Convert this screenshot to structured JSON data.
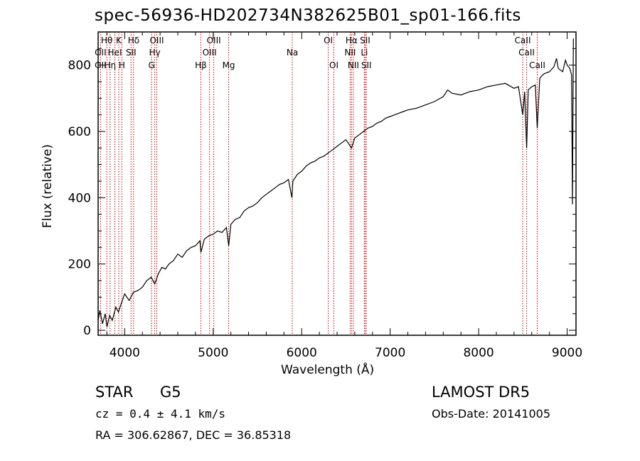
{
  "title": "spec-56936-HD202734N382625B01_sp01-166.fits",
  "info": {
    "object_class": "STAR",
    "subclass": "G5",
    "survey": "LAMOST DR5",
    "cz": "cz = 0.4 ± 4.1 km/s",
    "obs_date": "Obs-Date: 20141005",
    "coords": "RA = 306.62867, DEC =  36.85318"
  },
  "chart_data": {
    "type": "line",
    "title": "spec-56936-HD202734N382625B01_sp01-166.fits",
    "xlabel": "Wavelength (Å)",
    "ylabel": "Flux (relative)",
    "xlim": [
      3700,
      9100
    ],
    "ylim": [
      -15,
      900
    ],
    "xticks": [
      4000,
      5000,
      6000,
      7000,
      8000,
      9000
    ],
    "yticks": [
      0,
      200,
      400,
      600,
      800
    ],
    "grid": false,
    "line_color": "#000000",
    "marker_line_color": "#cc0000",
    "series": [
      {
        "x": [
          3700,
          3720,
          3750,
          3780,
          3800,
          3830,
          3860,
          3900,
          3930,
          3960,
          4000,
          4050,
          4100,
          4150,
          4200,
          4250,
          4300,
          4340,
          4380,
          4420,
          4460,
          4500,
          4550,
          4600,
          4650,
          4700,
          4750,
          4800,
          4850,
          4861,
          4900,
          4950,
          5000,
          5050,
          5100,
          5150,
          5175,
          5200,
          5250,
          5300,
          5350,
          5400,
          5450,
          5500,
          5550,
          5600,
          5650,
          5700,
          5750,
          5800,
          5850,
          5890,
          5900,
          5950,
          6000,
          6050,
          6100,
          6150,
          6200,
          6250,
          6300,
          6350,
          6400,
          6450,
          6500,
          6563,
          6600,
          6650,
          6700,
          6750,
          6800,
          6850,
          6900,
          6950,
          7000,
          7050,
          7100,
          7150,
          7200,
          7300,
          7400,
          7500,
          7600,
          7650,
          7700,
          7800,
          7900,
          8000,
          8100,
          8200,
          8300,
          8400,
          8450,
          8498,
          8520,
          8542,
          8560,
          8580,
          8600,
          8640,
          8662,
          8690,
          8720,
          8750,
          8800,
          8850,
          8880,
          8900,
          8950,
          8980,
          9000,
          9030,
          9050,
          9060,
          9070
        ],
        "y": [
          30,
          60,
          20,
          50,
          10,
          45,
          30,
          70,
          55,
          80,
          110,
          90,
          115,
          120,
          130,
          150,
          160,
          140,
          170,
          190,
          185,
          200,
          210,
          230,
          220,
          240,
          250,
          255,
          270,
          235,
          275,
          285,
          290,
          300,
          295,
          310,
          255,
          320,
          335,
          340,
          360,
          370,
          375,
          385,
          400,
          410,
          420,
          430,
          440,
          445,
          455,
          400,
          450,
          470,
          480,
          495,
          505,
          510,
          520,
          525,
          535,
          545,
          555,
          565,
          575,
          550,
          580,
          590,
          600,
          610,
          615,
          625,
          630,
          640,
          645,
          650,
          655,
          660,
          665,
          670,
          680,
          690,
          705,
          725,
          715,
          710,
          720,
          725,
          735,
          740,
          745,
          730,
          735,
          650,
          720,
          550,
          725,
          730,
          735,
          740,
          610,
          760,
          770,
          775,
          780,
          795,
          820,
          790,
          780,
          815,
          800,
          790,
          770,
          380,
          880
        ]
      }
    ],
    "lines": [
      {
        "label": "Hθ",
        "x": 3798,
        "row": 0
      },
      {
        "label": "OII",
        "x": 3727,
        "row": 1
      },
      {
        "label": "OII",
        "x": 3727,
        "row": 2
      },
      {
        "label": "Hη",
        "x": 3835,
        "row": 2
      },
      {
        "label": "K",
        "x": 3933,
        "row": 0
      },
      {
        "label": "HeI",
        "x": 3889,
        "row": 1
      },
      {
        "label": "H",
        "x": 3968,
        "row": 2
      },
      {
        "label": "Hδ",
        "x": 4101,
        "row": 0
      },
      {
        "label": "SII",
        "x": 4072,
        "row": 1
      },
      {
        "label": "OIII",
        "x": 4363,
        "row": 0
      },
      {
        "label": "Hγ",
        "x": 4340,
        "row": 1
      },
      {
        "label": "G",
        "x": 4304,
        "row": 2
      },
      {
        "label": "Hβ",
        "x": 4861,
        "row": 2
      },
      {
        "label": "OIII",
        "x": 5007,
        "row": 0
      },
      {
        "label": "OIII",
        "x": 4959,
        "row": 1
      },
      {
        "label": "Mg",
        "x": 5175,
        "row": 2
      },
      {
        "label": "Na",
        "x": 5894,
        "row": 1
      },
      {
        "label": "OI",
        "x": 6300,
        "row": 0
      },
      {
        "label": "OI",
        "x": 6364,
        "row": 2
      },
      {
        "label": "Hα",
        "x": 6563,
        "row": 0
      },
      {
        "label": "NII",
        "x": 6548,
        "row": 1
      },
      {
        "label": "NII",
        "x": 6584,
        "row": 2
      },
      {
        "label": "SII",
        "x": 6717,
        "row": 0
      },
      {
        "label": "Li",
        "x": 6708,
        "row": 1
      },
      {
        "label": "SII",
        "x": 6731,
        "row": 2
      },
      {
        "label": "CaII",
        "x": 8498,
        "row": 0
      },
      {
        "label": "CaII",
        "x": 8542,
        "row": 1
      },
      {
        "label": "CaII",
        "x": 8662,
        "row": 2
      }
    ]
  }
}
